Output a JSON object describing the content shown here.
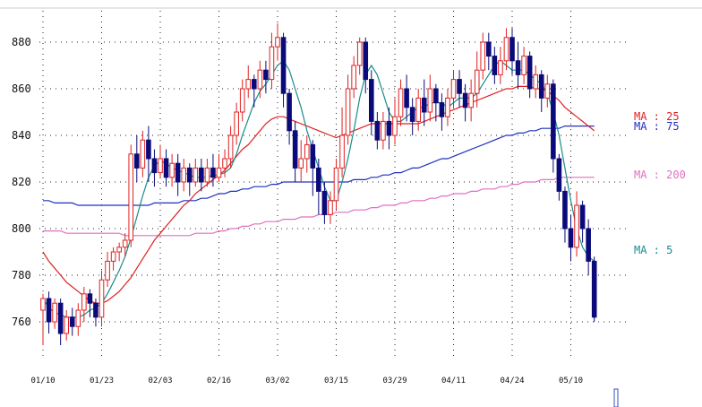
{
  "chart_data": {
    "type": "candlestick",
    "ylim": [
      745,
      893
    ],
    "yticks": [
      760,
      780,
      800,
      820,
      840,
      860,
      880
    ],
    "ytick_labels": [
      "760",
      "780",
      "800",
      "820",
      "840",
      "860",
      "880"
    ],
    "xtick_labels": [
      "01/10",
      "01/23",
      "02/03",
      "02/16",
      "03/02",
      "03/15",
      "03/29",
      "04/11",
      "04/24",
      "05/10"
    ],
    "xtick_index": [
      0,
      10,
      20,
      30,
      40,
      50,
      60,
      70,
      80,
      90
    ],
    "grid": true,
    "colors": {
      "up": "#e02020",
      "down": "#0a0a7a",
      "ma5": "#1a8c8c",
      "ma25": "#e02020",
      "ma75": "#2030c0",
      "ma200": "#e070c0"
    },
    "candles": [
      [
        765,
        770,
        750,
        772
      ],
      [
        770,
        760,
        755,
        773
      ],
      [
        760,
        768,
        757,
        770
      ],
      [
        768,
        755,
        750,
        770
      ],
      [
        755,
        762,
        752,
        765
      ],
      [
        762,
        758,
        754,
        766
      ],
      [
        758,
        765,
        754,
        768
      ],
      [
        765,
        772,
        760,
        775
      ],
      [
        772,
        768,
        762,
        774
      ],
      [
        768,
        762,
        758,
        770
      ],
      [
        762,
        778,
        758,
        782
      ],
      [
        778,
        786,
        775,
        790
      ],
      [
        786,
        790,
        782,
        792
      ],
      [
        790,
        792,
        786,
        794
      ],
      [
        792,
        795,
        788,
        798
      ],
      [
        795,
        832,
        792,
        836
      ],
      [
        832,
        826,
        820,
        840
      ],
      [
        826,
        838,
        822,
        842
      ],
      [
        838,
        830,
        820,
        844
      ],
      [
        830,
        824,
        818,
        834
      ],
      [
        824,
        830,
        822,
        836
      ],
      [
        830,
        822,
        818,
        834
      ],
      [
        822,
        828,
        818,
        832
      ],
      [
        828,
        820,
        814,
        832
      ],
      [
        820,
        826,
        816,
        830
      ],
      [
        826,
        820,
        814,
        828
      ],
      [
        820,
        826,
        818,
        830
      ],
      [
        826,
        820,
        816,
        830
      ],
      [
        820,
        826,
        818,
        830
      ],
      [
        826,
        822,
        818,
        832
      ],
      [
        822,
        826,
        820,
        832
      ],
      [
        826,
        830,
        822,
        834
      ],
      [
        830,
        840,
        826,
        844
      ],
      [
        840,
        850,
        836,
        854
      ],
      [
        850,
        860,
        846,
        864
      ],
      [
        860,
        864,
        856,
        870
      ],
      [
        864,
        860,
        852,
        866
      ],
      [
        860,
        868,
        856,
        872
      ],
      [
        868,
        864,
        858,
        872
      ],
      [
        864,
        878,
        860,
        884
      ],
      [
        878,
        882,
        872,
        888
      ],
      [
        882,
        858,
        852,
        884
      ],
      [
        858,
        842,
        836,
        860
      ],
      [
        842,
        826,
        820,
        846
      ],
      [
        826,
        830,
        820,
        838
      ],
      [
        830,
        836,
        824,
        840
      ],
      [
        836,
        826,
        814,
        838
      ],
      [
        826,
        816,
        806,
        830
      ],
      [
        816,
        806,
        802,
        820
      ],
      [
        806,
        812,
        802,
        816
      ],
      [
        812,
        826,
        808,
        830
      ],
      [
        826,
        840,
        822,
        852
      ],
      [
        840,
        860,
        836,
        866
      ],
      [
        860,
        870,
        856,
        874
      ],
      [
        870,
        880,
        866,
        882
      ],
      [
        880,
        864,
        858,
        882
      ],
      [
        864,
        846,
        840,
        868
      ],
      [
        846,
        838,
        834,
        850
      ],
      [
        838,
        846,
        834,
        850
      ],
      [
        846,
        840,
        834,
        852
      ],
      [
        840,
        848,
        836,
        856
      ],
      [
        848,
        860,
        844,
        864
      ],
      [
        860,
        852,
        846,
        866
      ],
      [
        852,
        846,
        840,
        856
      ],
      [
        846,
        856,
        842,
        860
      ],
      [
        856,
        850,
        844,
        864
      ],
      [
        850,
        860,
        846,
        866
      ],
      [
        860,
        854,
        846,
        862
      ],
      [
        854,
        848,
        842,
        858
      ],
      [
        848,
        856,
        844,
        860
      ],
      [
        856,
        864,
        852,
        868
      ],
      [
        864,
        858,
        852,
        868
      ],
      [
        858,
        852,
        846,
        862
      ],
      [
        852,
        858,
        846,
        864
      ],
      [
        858,
        868,
        852,
        876
      ],
      [
        868,
        880,
        864,
        884
      ],
      [
        880,
        874,
        868,
        884
      ],
      [
        874,
        866,
        862,
        878
      ],
      [
        866,
        872,
        862,
        878
      ],
      [
        872,
        882,
        868,
        886
      ],
      [
        882,
        872,
        866,
        886
      ],
      [
        872,
        866,
        860,
        880
      ],
      [
        866,
        874,
        862,
        878
      ],
      [
        874,
        860,
        856,
        876
      ],
      [
        860,
        866,
        856,
        870
      ],
      [
        866,
        856,
        850,
        868
      ],
      [
        856,
        862,
        852,
        866
      ],
      [
        862,
        830,
        824,
        864
      ],
      [
        830,
        816,
        812,
        832
      ],
      [
        816,
        800,
        794,
        818
      ],
      [
        800,
        792,
        786,
        806
      ],
      [
        792,
        810,
        788,
        816
      ],
      [
        810,
        800,
        794,
        812
      ],
      [
        800,
        786,
        780,
        804
      ],
      [
        786,
        762,
        760,
        788
      ]
    ],
    "ma5": [
      770,
      766,
      764,
      763,
      762,
      762,
      762,
      763,
      765,
      766,
      768,
      772,
      777,
      782,
      788,
      796,
      805,
      814,
      822,
      827,
      829,
      828,
      826,
      825,
      824,
      823,
      822,
      822,
      822,
      823,
      823,
      824,
      826,
      832,
      840,
      847,
      854,
      859,
      862,
      866,
      870,
      872,
      868,
      860,
      852,
      842,
      834,
      826,
      818,
      812,
      812,
      820,
      830,
      842,
      856,
      866,
      870,
      866,
      858,
      850,
      846,
      846,
      848,
      850,
      852,
      852,
      854,
      854,
      854,
      852,
      854,
      856,
      856,
      856,
      858,
      862,
      866,
      870,
      872,
      870,
      868,
      868,
      868,
      866,
      864,
      862,
      858,
      850,
      840,
      826,
      812,
      800,
      792,
      788,
      786
    ],
    "ma25": [
      790,
      786,
      783,
      780,
      777,
      775,
      773,
      771,
      769,
      768,
      768,
      769,
      771,
      773,
      776,
      779,
      783,
      787,
      791,
      795,
      798,
      801,
      804,
      807,
      810,
      812,
      815,
      817,
      819,
      821,
      823,
      825,
      828,
      831,
      834,
      836,
      839,
      842,
      845,
      847,
      848,
      848,
      847,
      846,
      845,
      844,
      843,
      842,
      841,
      840,
      839,
      840,
      841,
      842,
      843,
      844,
      845,
      845,
      845,
      845,
      845,
      845,
      845,
      845,
      845,
      846,
      847,
      848,
      849,
      850,
      851,
      852,
      853,
      854,
      855,
      856,
      857,
      858,
      859,
      860,
      860,
      861,
      861,
      861,
      860,
      860,
      859,
      857,
      855,
      852,
      850,
      848,
      846,
      844,
      842
    ],
    "ma75": [
      812,
      812,
      811,
      811,
      811,
      811,
      810,
      810,
      810,
      810,
      810,
      810,
      810,
      810,
      810,
      810,
      810,
      810,
      810,
      811,
      811,
      811,
      811,
      811,
      812,
      812,
      812,
      813,
      813,
      814,
      815,
      815,
      816,
      816,
      817,
      817,
      818,
      818,
      818,
      819,
      819,
      820,
      820,
      820,
      820,
      820,
      820,
      820,
      820,
      820,
      820,
      820,
      820,
      821,
      821,
      821,
      822,
      822,
      823,
      823,
      824,
      824,
      825,
      826,
      826,
      827,
      828,
      829,
      830,
      830,
      831,
      832,
      833,
      834,
      835,
      836,
      837,
      838,
      839,
      840,
      840,
      841,
      841,
      842,
      842,
      843,
      843,
      843,
      843,
      844,
      844,
      844,
      844,
      844,
      844
    ],
    "ma200": [
      799,
      799,
      799,
      799,
      798,
      798,
      798,
      798,
      798,
      798,
      798,
      798,
      798,
      798,
      797,
      797,
      797,
      797,
      797,
      797,
      797,
      797,
      797,
      797,
      797,
      797,
      798,
      798,
      798,
      798,
      799,
      799,
      800,
      800,
      801,
      801,
      802,
      802,
      803,
      803,
      803,
      804,
      804,
      804,
      805,
      805,
      805,
      806,
      806,
      806,
      807,
      807,
      807,
      808,
      808,
      808,
      809,
      809,
      810,
      810,
      810,
      811,
      811,
      812,
      812,
      812,
      813,
      813,
      814,
      814,
      815,
      815,
      815,
      816,
      816,
      817,
      817,
      817,
      818,
      818,
      819,
      819,
      820,
      820,
      820,
      821,
      821,
      821,
      822,
      822,
      822,
      822,
      822,
      822,
      822
    ],
    "ma_labels": [
      {
        "id": "ma25",
        "text": "MA : 25"
      },
      {
        "id": "ma75",
        "text": "MA : 75"
      },
      {
        "id": "ma200",
        "text": "MA : 200"
      },
      {
        "id": "ma5",
        "text": "MA : 5"
      }
    ]
  }
}
